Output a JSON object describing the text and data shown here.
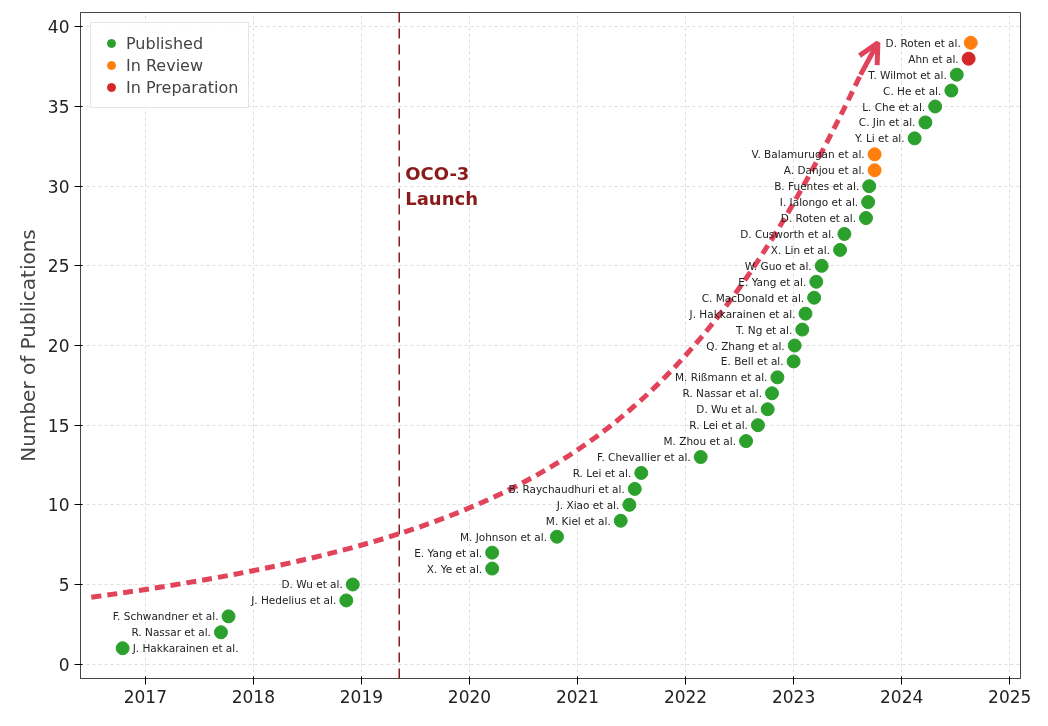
{
  "chart_data": {
    "type": "scatter",
    "ylabel": "Number of Publications",
    "xlim": [
      2016.4,
      2025.1
    ],
    "ylim": [
      -0.9,
      40.9
    ],
    "xticks": [
      2017,
      2018,
      2019,
      2020,
      2021,
      2022,
      2023,
      2024,
      2025
    ],
    "yticks": [
      0,
      5,
      10,
      15,
      20,
      25,
      30,
      35,
      40
    ],
    "grid": true,
    "legend": "top left",
    "marker": "circle",
    "series": [
      {
        "name": "Published",
        "color": "#2ca02c",
        "x": [
          2016.79,
          2017.7,
          2017.77,
          2018.86,
          2018.92,
          2020.21,
          2020.21,
          2020.81,
          2021.4,
          2021.48,
          2021.53,
          2021.59,
          2022.14,
          2022.56,
          2022.67,
          2022.76,
          2022.8,
          2022.85,
          2023.0,
          2023.01,
          2023.08,
          2023.11,
          2023.19,
          2023.21,
          2023.26,
          2023.43,
          2023.47,
          2023.67,
          2023.69,
          2023.7,
          2024.12,
          2024.22,
          2024.31,
          2024.46,
          2024.51
        ],
        "values": [
          1,
          2,
          3,
          4,
          5,
          6,
          7,
          8,
          9,
          10,
          11,
          12,
          13,
          14,
          15,
          16,
          17,
          18,
          19,
          20,
          21,
          22,
          23,
          24,
          25,
          26,
          27,
          28,
          29,
          30,
          33,
          34,
          35,
          36,
          37
        ]
      },
      {
        "name": "In Review",
        "color": "#ff7f0e",
        "x": [
          2023.75,
          2023.75,
          2024.64
        ],
        "values": [
          31,
          32,
          39
        ]
      },
      {
        "name": "In Preparation",
        "color": "#d62728",
        "x": [
          2024.62
        ],
        "values": [
          38
        ]
      }
    ],
    "ref_lines": [
      {
        "axis": "x",
        "value": 2019.35,
        "label": "OCO-3\nLaunch",
        "color": "#8b1a1a",
        "line_style": "dashed"
      }
    ],
    "annotations": [
      {
        "text": "J. Hakkarainen et al.",
        "x": 2016.79,
        "y": 1
      },
      {
        "text": "R. Nassar et al.",
        "x": 2017.7,
        "y": 2
      },
      {
        "text": "F. Schwandner et al.",
        "x": 2017.77,
        "y": 3
      },
      {
        "text": "J. Hedelius et al.",
        "x": 2018.86,
        "y": 4
      },
      {
        "text": "D. Wu et al.",
        "x": 2018.92,
        "y": 5
      },
      {
        "text": "X. Ye et al.",
        "x": 2020.21,
        "y": 6
      },
      {
        "text": "E. Yang et al.",
        "x": 2020.21,
        "y": 7
      },
      {
        "text": "M. Johnson et al.",
        "x": 2020.81,
        "y": 8
      },
      {
        "text": "M. Kiel et al.",
        "x": 2021.4,
        "y": 9
      },
      {
        "text": "J. Xiao et al.",
        "x": 2021.48,
        "y": 10
      },
      {
        "text": "B. Raychaudhuri et al.",
        "x": 2021.53,
        "y": 11
      },
      {
        "text": "R. Lei et al.",
        "x": 2021.59,
        "y": 12
      },
      {
        "text": "F. Chevallier et al.",
        "x": 2022.14,
        "y": 13
      },
      {
        "text": "M. Zhou et al.",
        "x": 2022.56,
        "y": 14
      },
      {
        "text": "R. Lei et al.",
        "x": 2022.67,
        "y": 15
      },
      {
        "text": "D. Wu et al.",
        "x": 2022.76,
        "y": 16
      },
      {
        "text": "R. Nassar et al.",
        "x": 2022.8,
        "y": 17
      },
      {
        "text": "M. Rißmann et al.",
        "x": 2022.85,
        "y": 18
      },
      {
        "text": "E. Bell et al.",
        "x": 2023.0,
        "y": 19
      },
      {
        "text": "Q. Zhang et al.",
        "x": 2023.01,
        "y": 20
      },
      {
        "text": "T. Ng et al.",
        "x": 2023.08,
        "y": 21
      },
      {
        "text": "J. Hakkarainen et al.",
        "x": 2023.11,
        "y": 22
      },
      {
        "text": "C. MacDonald et al.",
        "x": 2023.19,
        "y": 23
      },
      {
        "text": "E. Yang et al.",
        "x": 2023.21,
        "y": 24
      },
      {
        "text": "W. Guo et al.",
        "x": 2023.26,
        "y": 25
      },
      {
        "text": "X. Lin et al.",
        "x": 2023.43,
        "y": 26
      },
      {
        "text": "D. Cusworth et al.",
        "x": 2023.47,
        "y": 27
      },
      {
        "text": "D. Roten et al.",
        "x": 2023.67,
        "y": 28
      },
      {
        "text": "I. Ialongo et al.",
        "x": 2023.69,
        "y": 29
      },
      {
        "text": "B. Fuentes et al.",
        "x": 2023.7,
        "y": 30
      },
      {
        "text": "A. Danjou et al.",
        "x": 2023.75,
        "y": 31
      },
      {
        "text": "V. Balamurugan et al.",
        "x": 2023.75,
        "y": 32
      },
      {
        "text": "Y. Li et al.",
        "x": 2024.12,
        "y": 33
      },
      {
        "text": "C. Jin et al.",
        "x": 2024.22,
        "y": 34
      },
      {
        "text": "L. Che et al.",
        "x": 2024.31,
        "y": 35
      },
      {
        "text": "C. He et al.",
        "x": 2024.46,
        "y": 36
      },
      {
        "text": "T. Wilmot et al.",
        "x": 2024.51,
        "y": 37
      },
      {
        "text": "Ahn et al.",
        "x": 2024.62,
        "y": 38
      },
      {
        "text": "D. Roten et al.",
        "x": 2024.64,
        "y": 39
      }
    ]
  }
}
